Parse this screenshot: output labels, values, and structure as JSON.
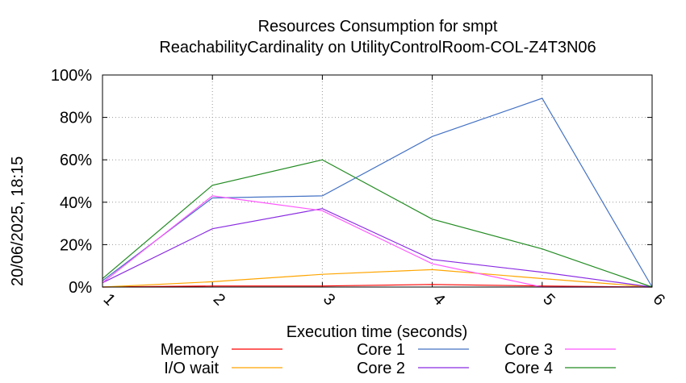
{
  "chart_data": {
    "type": "line",
    "title": "Resources Consumption for smpt",
    "subtitle": "ReachabilityCardinality on UtilityControlRoom-COL-Z4T3N06",
    "xlabel": "Execution time (seconds)",
    "ylabel": "",
    "side_label": "20/06/2025, 18:15",
    "xlim": [
      1,
      6
    ],
    "ylim": [
      0,
      100
    ],
    "x_ticks": [
      "1",
      "2",
      "3",
      "4",
      "5",
      "6"
    ],
    "y_ticks": [
      "0%",
      "20%",
      "40%",
      "60%",
      "80%",
      "100%"
    ],
    "grid": true,
    "legend_position": "bottom",
    "x": [
      1,
      2,
      3,
      4,
      5,
      6
    ],
    "series": [
      {
        "name": "Memory",
        "color": "#ff0000",
        "values": [
          0,
          0.5,
          0.5,
          1.2,
          0.5,
          0
        ]
      },
      {
        "name": "I/O wait",
        "color": "#ffa500",
        "values": [
          0,
          2.5,
          6,
          8.2,
          4,
          0
        ]
      },
      {
        "name": "Core 1",
        "color": "#4472c4",
        "values": [
          3,
          42,
          43,
          71,
          89,
          0
        ]
      },
      {
        "name": "Core 2",
        "color": "#8a2be2",
        "values": [
          2,
          27.5,
          37,
          13,
          7,
          0
        ]
      },
      {
        "name": "Core 3",
        "color": "#ff55ff",
        "values": [
          2,
          43,
          36,
          11,
          0,
          0
        ]
      },
      {
        "name": "Core 4",
        "color": "#228b22",
        "values": [
          4,
          48,
          60,
          32,
          18,
          0
        ]
      }
    ]
  }
}
